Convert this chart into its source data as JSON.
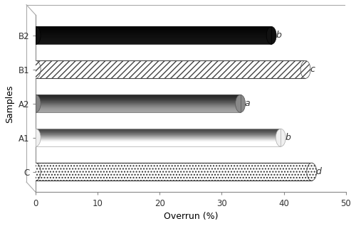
{
  "categories": [
    "C",
    "A1",
    "A2",
    "B1",
    "B2"
  ],
  "values": [
    44.5,
    39.5,
    33.0,
    43.5,
    38.0
  ],
  "letters": [
    "d",
    "b",
    "a",
    "c",
    "b"
  ],
  "xlabel": "Overrun (%)",
  "ylabel": "Samples",
  "xlim": [
    0,
    50
  ],
  "xticks": [
    0,
    10,
    20,
    30,
    40,
    50
  ],
  "bar_height": 0.52,
  "axis_fontsize": 9,
  "tick_fontsize": 8.5,
  "letter_fontsize": 9,
  "background_color": "#ffffff",
  "bar_styles": [
    {
      "type": "dots",
      "face": "#c8c8c8",
      "edge": "#333333",
      "hatch": "...."
    },
    {
      "type": "plain",
      "face": "#f0f0f0",
      "edge": "#aaaaaa",
      "hatch": ""
    },
    {
      "type": "plain",
      "face": "#888888",
      "edge": "#555555",
      "hatch": ""
    },
    {
      "type": "diag",
      "face": "#cccccc",
      "edge": "#444444",
      "hatch": "////"
    },
    {
      "type": "plain",
      "face": "#111111",
      "edge": "#000000",
      "hatch": ""
    }
  ],
  "spine_color": "#888888",
  "tick_color": "#888888"
}
